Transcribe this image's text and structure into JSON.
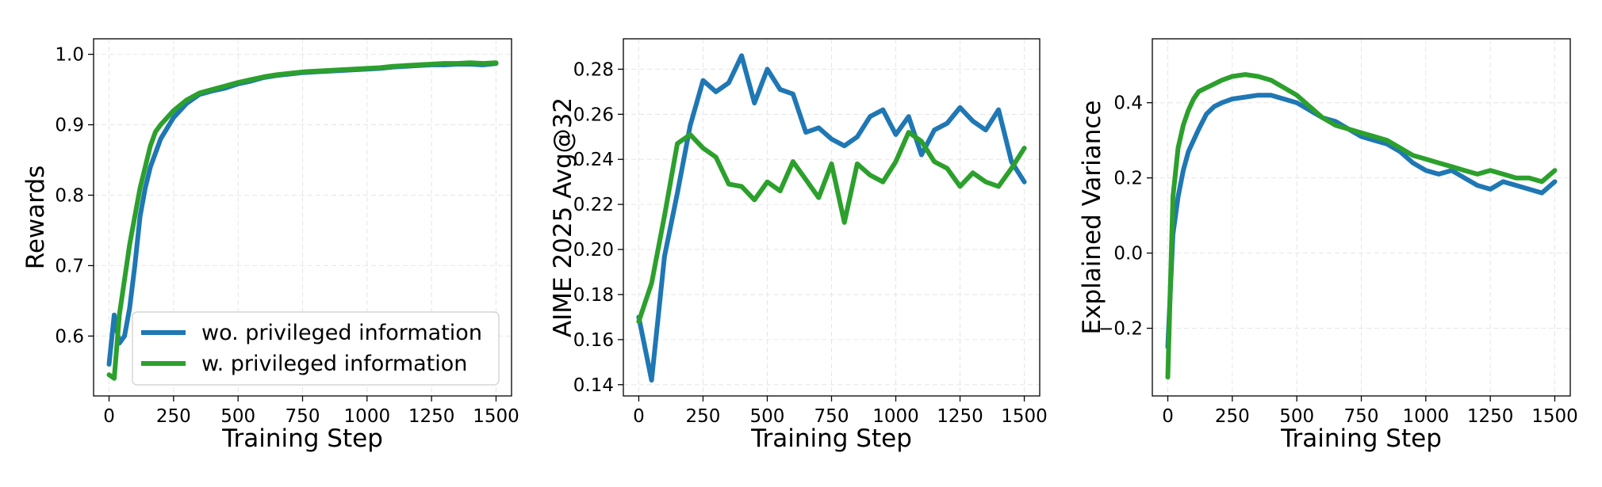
{
  "colors": {
    "series_a": "#1f77b4",
    "series_b": "#2ca02c",
    "grid": "#e6e6e6",
    "axis": "#000000"
  },
  "chart_data": [
    {
      "type": "line",
      "xlabel": "Training Step",
      "ylabel": "Rewards",
      "xlim": [
        -60,
        1560
      ],
      "ylim": [
        0.515,
        1.022
      ],
      "xticks": [
        0,
        250,
        500,
        750,
        1000,
        1250,
        1500
      ],
      "yticks": [
        0.6,
        0.7,
        0.8,
        0.9,
        1.0
      ],
      "ytick_labels": [
        "0.6",
        "0.7",
        "0.8",
        "0.9",
        "1.0"
      ],
      "grid": true,
      "legend": "lower-right",
      "series": [
        {
          "name": "wo. privileged information",
          "x": [
            0,
            20,
            40,
            60,
            80,
            100,
            120,
            140,
            160,
            180,
            200,
            250,
            300,
            350,
            400,
            450,
            500,
            550,
            600,
            650,
            700,
            750,
            800,
            850,
            900,
            950,
            1000,
            1050,
            1100,
            1150,
            1200,
            1250,
            1300,
            1350,
            1400,
            1450,
            1500
          ],
          "y": [
            0.56,
            0.63,
            0.59,
            0.6,
            0.64,
            0.7,
            0.77,
            0.81,
            0.84,
            0.86,
            0.88,
            0.91,
            0.93,
            0.943,
            0.948,
            0.952,
            0.958,
            0.962,
            0.967,
            0.97,
            0.972,
            0.974,
            0.975,
            0.976,
            0.977,
            0.978,
            0.979,
            0.98,
            0.982,
            0.983,
            0.984,
            0.985,
            0.985,
            0.986,
            0.986,
            0.985,
            0.987
          ]
        },
        {
          "name": "w. privileged information",
          "x": [
            0,
            20,
            40,
            60,
            80,
            100,
            120,
            140,
            160,
            180,
            200,
            250,
            300,
            350,
            400,
            450,
            500,
            550,
            600,
            650,
            700,
            750,
            800,
            850,
            900,
            950,
            1000,
            1050,
            1100,
            1150,
            1200,
            1250,
            1300,
            1350,
            1400,
            1450,
            1500
          ],
          "y": [
            0.545,
            0.54,
            0.63,
            0.68,
            0.73,
            0.77,
            0.81,
            0.84,
            0.87,
            0.89,
            0.9,
            0.92,
            0.935,
            0.945,
            0.95,
            0.955,
            0.96,
            0.964,
            0.968,
            0.971,
            0.973,
            0.975,
            0.976,
            0.977,
            0.978,
            0.979,
            0.98,
            0.981,
            0.983,
            0.984,
            0.985,
            0.986,
            0.987,
            0.987,
            0.988,
            0.987,
            0.988
          ]
        }
      ]
    },
    {
      "type": "line",
      "xlabel": "Training Step",
      "ylabel": "AIME 2025 Avg@32",
      "xlim": [
        -60,
        1560
      ],
      "ylim": [
        0.135,
        0.2935
      ],
      "xticks": [
        0,
        250,
        500,
        750,
        1000,
        1250,
        1500
      ],
      "yticks": [
        0.14,
        0.16,
        0.18,
        0.2,
        0.22,
        0.24,
        0.26,
        0.28
      ],
      "ytick_labels": [
        "0.14",
        "0.16",
        "0.18",
        "0.20",
        "0.22",
        "0.24",
        "0.26",
        "0.28"
      ],
      "grid": true,
      "series": [
        {
          "name": "wo. privileged information",
          "x": [
            0,
            50,
            100,
            150,
            200,
            250,
            300,
            350,
            400,
            450,
            500,
            550,
            600,
            650,
            700,
            750,
            800,
            850,
            900,
            950,
            1000,
            1050,
            1100,
            1150,
            1200,
            1250,
            1300,
            1350,
            1400,
            1450,
            1500
          ],
          "y": [
            0.17,
            0.142,
            0.197,
            0.225,
            0.255,
            0.275,
            0.27,
            0.274,
            0.286,
            0.265,
            0.28,
            0.271,
            0.269,
            0.252,
            0.254,
            0.249,
            0.246,
            0.25,
            0.259,
            0.262,
            0.251,
            0.259,
            0.242,
            0.253,
            0.256,
            0.263,
            0.257,
            0.253,
            0.262,
            0.239,
            0.23
          ]
        },
        {
          "name": "w. privileged information",
          "x": [
            0,
            50,
            100,
            150,
            200,
            250,
            300,
            350,
            400,
            450,
            500,
            550,
            600,
            650,
            700,
            750,
            800,
            850,
            900,
            950,
            1000,
            1050,
            1100,
            1150,
            1200,
            1250,
            1300,
            1350,
            1400,
            1450,
            1500
          ],
          "y": [
            0.168,
            0.185,
            0.215,
            0.247,
            0.251,
            0.245,
            0.241,
            0.229,
            0.228,
            0.222,
            0.23,
            0.226,
            0.239,
            0.231,
            0.223,
            0.238,
            0.212,
            0.238,
            0.233,
            0.23,
            0.239,
            0.252,
            0.248,
            0.239,
            0.236,
            0.228,
            0.234,
            0.23,
            0.228,
            0.236,
            0.245
          ]
        }
      ]
    },
    {
      "type": "line",
      "xlabel": "Training Step",
      "ylabel": "Explained Variance",
      "xlim": [
        -60,
        1560
      ],
      "ylim": [
        -0.38,
        0.57
      ],
      "xticks": [
        0,
        250,
        500,
        750,
        1000,
        1250,
        1500
      ],
      "yticks": [
        -0.2,
        0.0,
        0.2,
        0.4
      ],
      "ytick_labels": [
        "−0.2",
        "0.0",
        "0.2",
        "0.4"
      ],
      "grid": true,
      "series": [
        {
          "name": "wo. privileged information",
          "x": [
            0,
            20,
            40,
            60,
            80,
            100,
            120,
            150,
            180,
            210,
            250,
            300,
            350,
            400,
            450,
            500,
            550,
            600,
            650,
            700,
            750,
            800,
            850,
            900,
            950,
            1000,
            1050,
            1100,
            1150,
            1200,
            1250,
            1300,
            1350,
            1400,
            1450,
            1500
          ],
          "y": [
            -0.25,
            0.05,
            0.15,
            0.22,
            0.27,
            0.3,
            0.33,
            0.37,
            0.39,
            0.4,
            0.41,
            0.415,
            0.42,
            0.42,
            0.41,
            0.4,
            0.38,
            0.36,
            0.35,
            0.33,
            0.31,
            0.3,
            0.29,
            0.27,
            0.24,
            0.22,
            0.21,
            0.22,
            0.2,
            0.18,
            0.17,
            0.19,
            0.18,
            0.17,
            0.16,
            0.19
          ]
        },
        {
          "name": "w. privileged information",
          "x": [
            0,
            20,
            40,
            60,
            80,
            100,
            120,
            150,
            180,
            210,
            250,
            300,
            350,
            400,
            450,
            500,
            550,
            600,
            650,
            700,
            750,
            800,
            850,
            900,
            950,
            1000,
            1050,
            1100,
            1150,
            1200,
            1250,
            1300,
            1350,
            1400,
            1450,
            1500
          ],
          "y": [
            -0.33,
            0.15,
            0.28,
            0.34,
            0.38,
            0.41,
            0.43,
            0.44,
            0.45,
            0.46,
            0.47,
            0.475,
            0.47,
            0.46,
            0.44,
            0.42,
            0.39,
            0.36,
            0.34,
            0.33,
            0.32,
            0.31,
            0.3,
            0.28,
            0.26,
            0.25,
            0.24,
            0.23,
            0.22,
            0.21,
            0.22,
            0.21,
            0.2,
            0.2,
            0.19,
            0.22
          ]
        }
      ]
    }
  ]
}
